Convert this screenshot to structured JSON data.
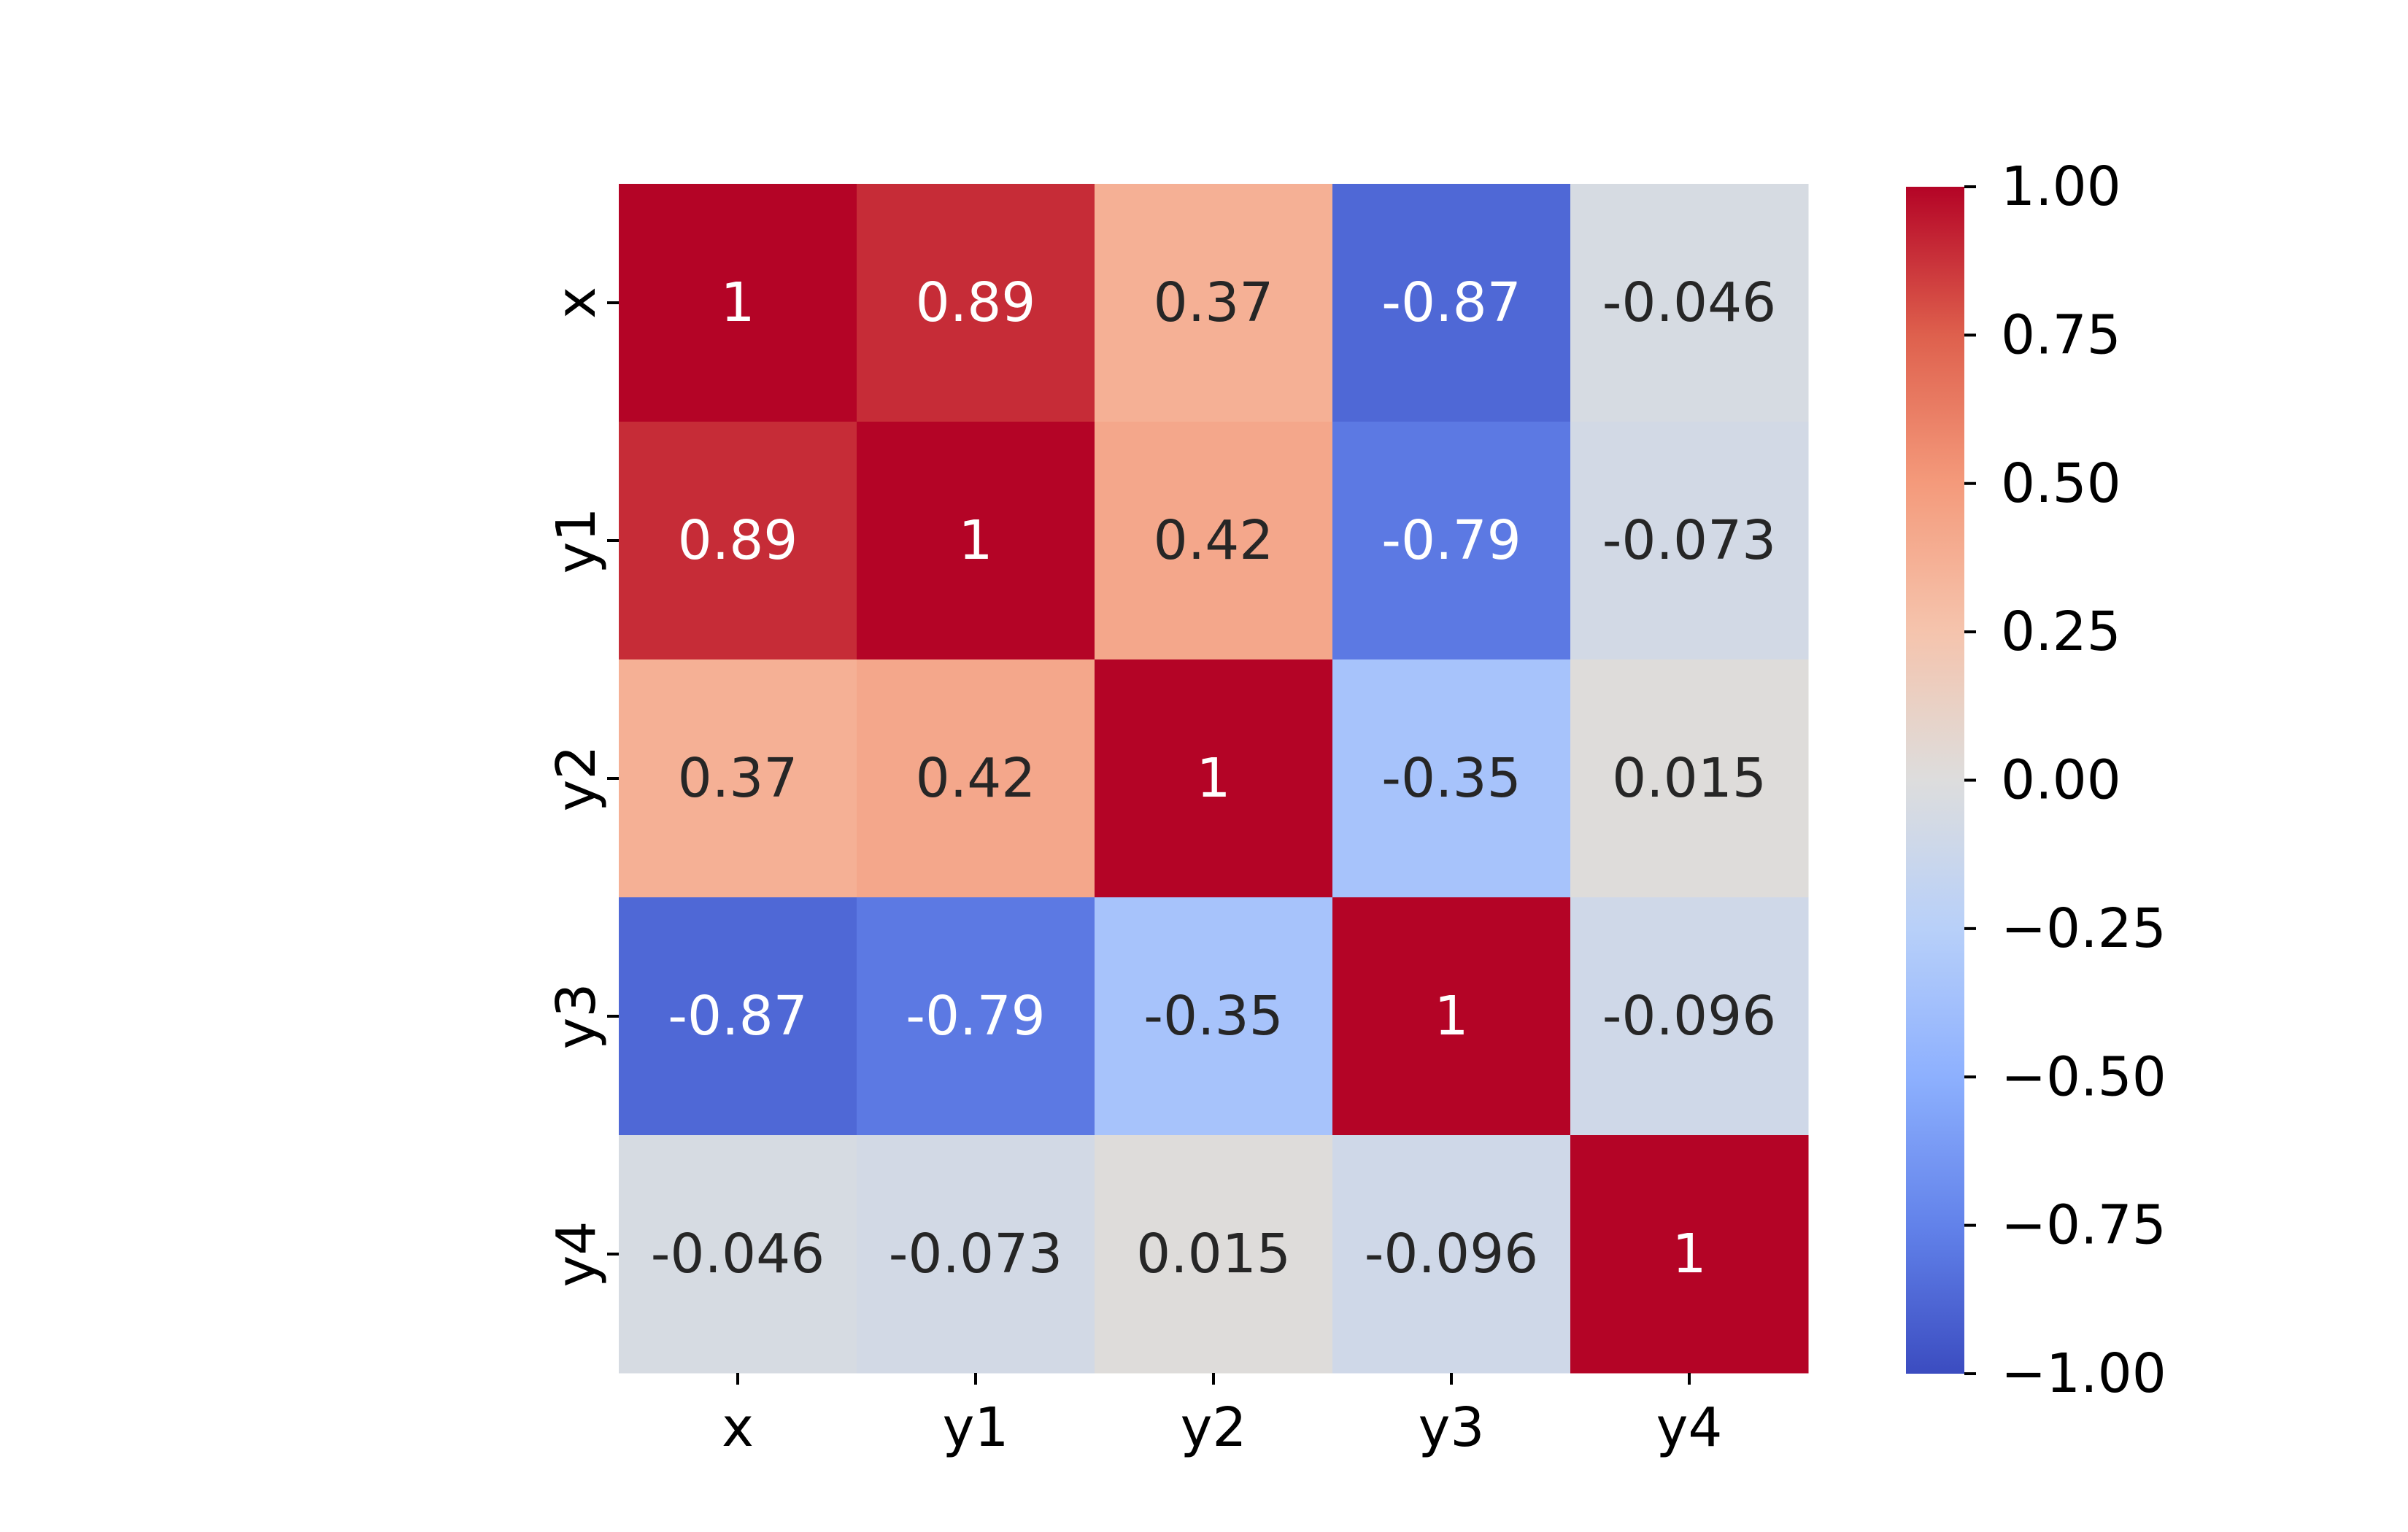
{
  "chart_data": {
    "type": "heatmap",
    "title": "",
    "xlabel": "",
    "ylabel": "",
    "x_categories": [
      "x",
      "y1",
      "y2",
      "y3",
      "y4"
    ],
    "y_categories": [
      "x",
      "y1",
      "y2",
      "y3",
      "y4"
    ],
    "values": [
      [
        1,
        0.89,
        0.37,
        -0.87,
        -0.046
      ],
      [
        0.89,
        1,
        0.42,
        -0.79,
        -0.073
      ],
      [
        0.37,
        0.42,
        1,
        -0.35,
        0.015
      ],
      [
        -0.87,
        -0.79,
        -0.35,
        1,
        -0.096
      ],
      [
        -0.046,
        -0.073,
        0.015,
        -0.096,
        1
      ]
    ],
    "annotations": [
      [
        "1",
        "0.89",
        "0.37",
        "-0.87",
        "-0.046"
      ],
      [
        "0.89",
        "1",
        "0.42",
        "-0.79",
        "-0.073"
      ],
      [
        "0.37",
        "0.42",
        "1",
        "-0.35",
        "0.015"
      ],
      [
        "-0.87",
        "-0.79",
        "-0.35",
        "1",
        "-0.096"
      ],
      [
        "-0.046",
        "-0.073",
        "0.015",
        "-0.096",
        "1"
      ]
    ],
    "colormap": "coolwarm",
    "colorbar": {
      "range": [
        -1.0,
        1.0
      ],
      "ticks": [
        1.0,
        0.75,
        0.5,
        0.25,
        0.0,
        -0.25,
        -0.5,
        -0.75,
        -1.0
      ],
      "tick_labels": [
        "1.00",
        "0.75",
        "0.50",
        "0.25",
        "0.00",
        "−0.25",
        "−0.50",
        "−0.75",
        "−1.00"
      ]
    },
    "colors": {
      "annotation_light": "#ffffff",
      "annotation_dark": "#262626",
      "axis": "#000000"
    }
  }
}
